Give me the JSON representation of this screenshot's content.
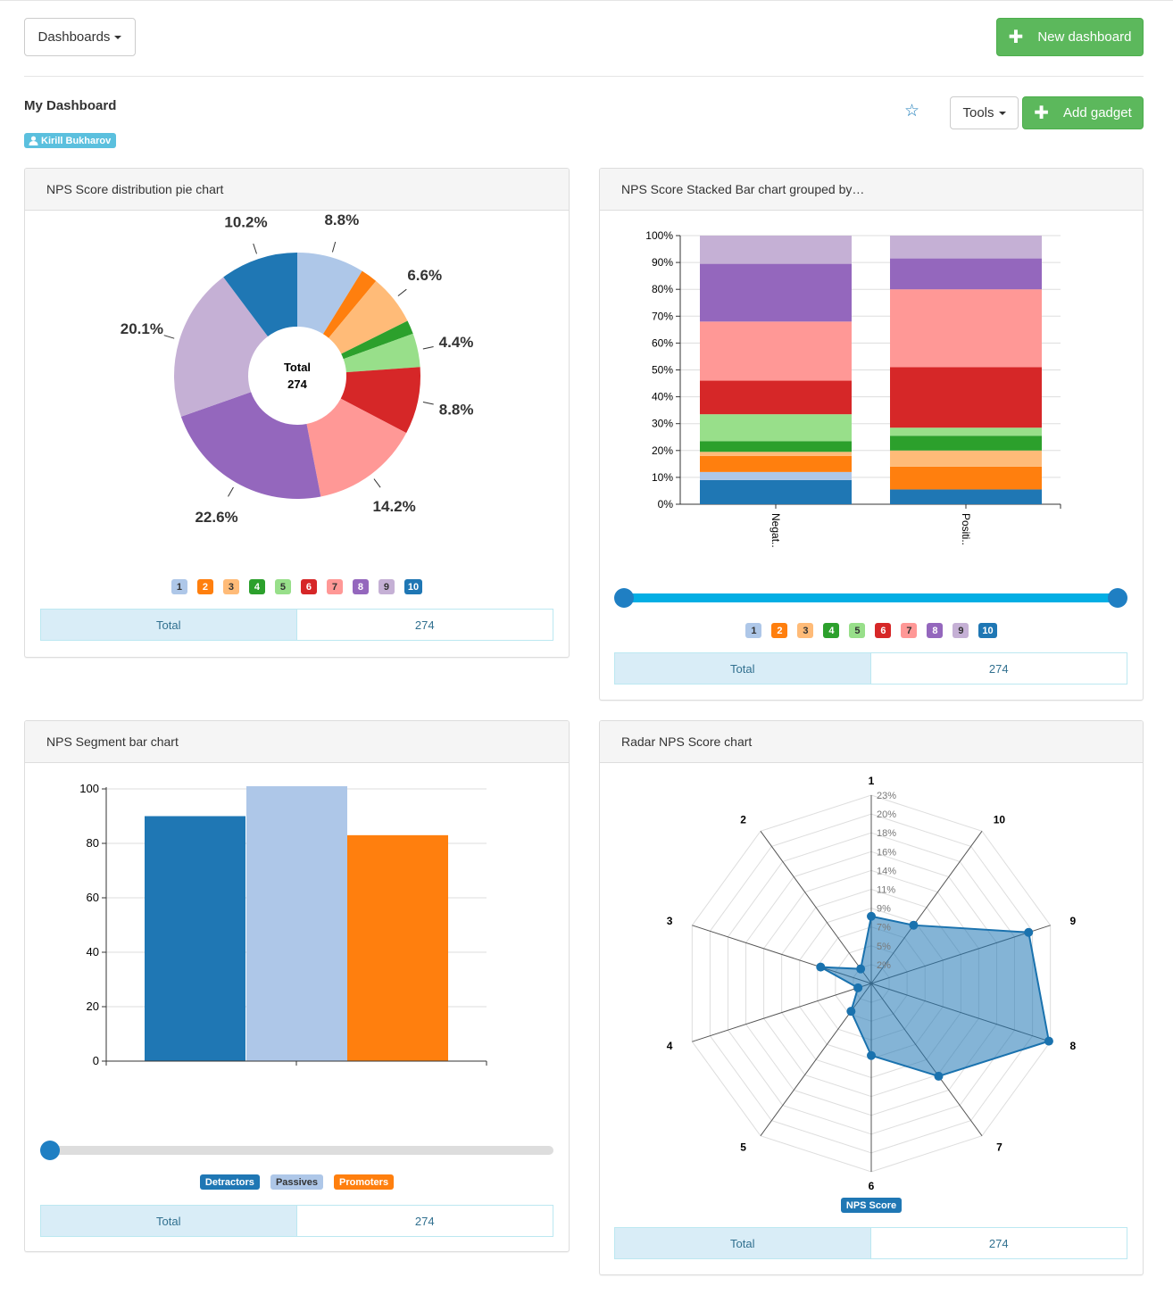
{
  "header": {
    "dashboards_label": "Dashboards",
    "new_dashboard_label": "New dashboard"
  },
  "dashboard": {
    "title": "My Dashboard",
    "owner": "Kirill Bukharov",
    "tools_label": "Tools",
    "add_gadget_label": "Add gadget",
    "favorite_icon": "star-icon"
  },
  "colors": {
    "1": "#aec7e8",
    "2": "#ff7f0e",
    "3": "#ffbb78",
    "4": "#2ca02c",
    "5": "#98df8a",
    "6": "#d62728",
    "7": "#ff9896",
    "8": "#9467bd",
    "9": "#c5b0d5",
    "10": "#1f77b4"
  },
  "panels": {
    "pie": {
      "title": "NPS Score distribution pie chart",
      "total_label": "Total",
      "total_value": "274",
      "legend": [
        "1",
        "2",
        "3",
        "4",
        "5",
        "6",
        "7",
        "8",
        "9",
        "10"
      ]
    },
    "stacked": {
      "title": "NPS Score Stacked Bar chart grouped by…",
      "total_label": "Total",
      "total_value": "274",
      "legend": [
        "1",
        "2",
        "3",
        "4",
        "5",
        "6",
        "7",
        "8",
        "9",
        "10"
      ]
    },
    "segment": {
      "title": "NPS Segment bar chart",
      "total_label": "Total",
      "total_value": "274",
      "legend": [
        "Detractors",
        "Passives",
        "Promoters"
      ]
    },
    "radar": {
      "title": "Radar NPS Score chart",
      "total_label": "Total",
      "total_value": "274",
      "legend": [
        "NPS Score"
      ]
    }
  },
  "chart_data": [
    {
      "type": "pie",
      "donut": true,
      "center_label": "Total",
      "center_value": "274",
      "categories": [
        "1",
        "2",
        "3",
        "4",
        "5",
        "6",
        "7",
        "8",
        "9",
        "10"
      ],
      "values": [
        8.8,
        2.2,
        6.6,
        1.8,
        4.4,
        8.8,
        14.2,
        22.6,
        20.1,
        10.2
      ],
      "labels": [
        "8.8%",
        "",
        "6.6%",
        "",
        "4.4%",
        "8.8%",
        "14.2%",
        "22.6%",
        "20.1%",
        "10.2%"
      ]
    },
    {
      "type": "bar",
      "stacked": true,
      "categories": [
        "Negat..",
        "Positi.."
      ],
      "ylim": [
        0,
        100
      ],
      "yticks": [
        "0%",
        "10%",
        "20%",
        "30%",
        "40%",
        "50%",
        "60%",
        "70%",
        "80%",
        "90%",
        "100%"
      ],
      "series": [
        {
          "name": "10",
          "values": [
            9,
            5.5
          ]
        },
        {
          "name": "1",
          "values": [
            3,
            0
          ]
        },
        {
          "name": "2",
          "values": [
            6,
            8.5
          ]
        },
        {
          "name": "3",
          "values": [
            1.5,
            6
          ]
        },
        {
          "name": "4",
          "values": [
            4,
            5.5
          ]
        },
        {
          "name": "5",
          "values": [
            10,
            3
          ]
        },
        {
          "name": "6",
          "values": [
            12.5,
            22.5
          ]
        },
        {
          "name": "7",
          "values": [
            22,
            29
          ]
        },
        {
          "name": "8",
          "values": [
            21.5,
            11.5
          ]
        },
        {
          "name": "9",
          "values": [
            10.5,
            8.5
          ]
        }
      ],
      "range_slider": [
        0,
        1
      ]
    },
    {
      "type": "bar",
      "categories": [
        "Detractors",
        "Passives",
        "Promoters"
      ],
      "values": [
        90,
        101,
        83
      ],
      "colors": [
        "#1f77b4",
        "#aec7e8",
        "#ff7f0e"
      ],
      "ylim": [
        0,
        100
      ],
      "yticks": [
        0,
        20,
        40,
        60,
        80,
        100
      ],
      "range_slider": [
        0
      ]
    },
    {
      "type": "radar",
      "axes": [
        "1",
        "10",
        "9",
        "8",
        "7",
        "6",
        "5",
        "4",
        "3",
        "2"
      ],
      "series": [
        {
          "name": "NPS Score",
          "values": [
            8.2,
            8.8,
            20.2,
            22.8,
            14.0,
            8.8,
            4.2,
            1.7,
            6.5,
            2.2
          ]
        }
      ],
      "scale_labels": [
        "2%",
        "5%",
        "7%",
        "9%",
        "11%",
        "14%",
        "16%",
        "18%",
        "20%",
        "23%"
      ],
      "rmax": 23
    }
  ]
}
